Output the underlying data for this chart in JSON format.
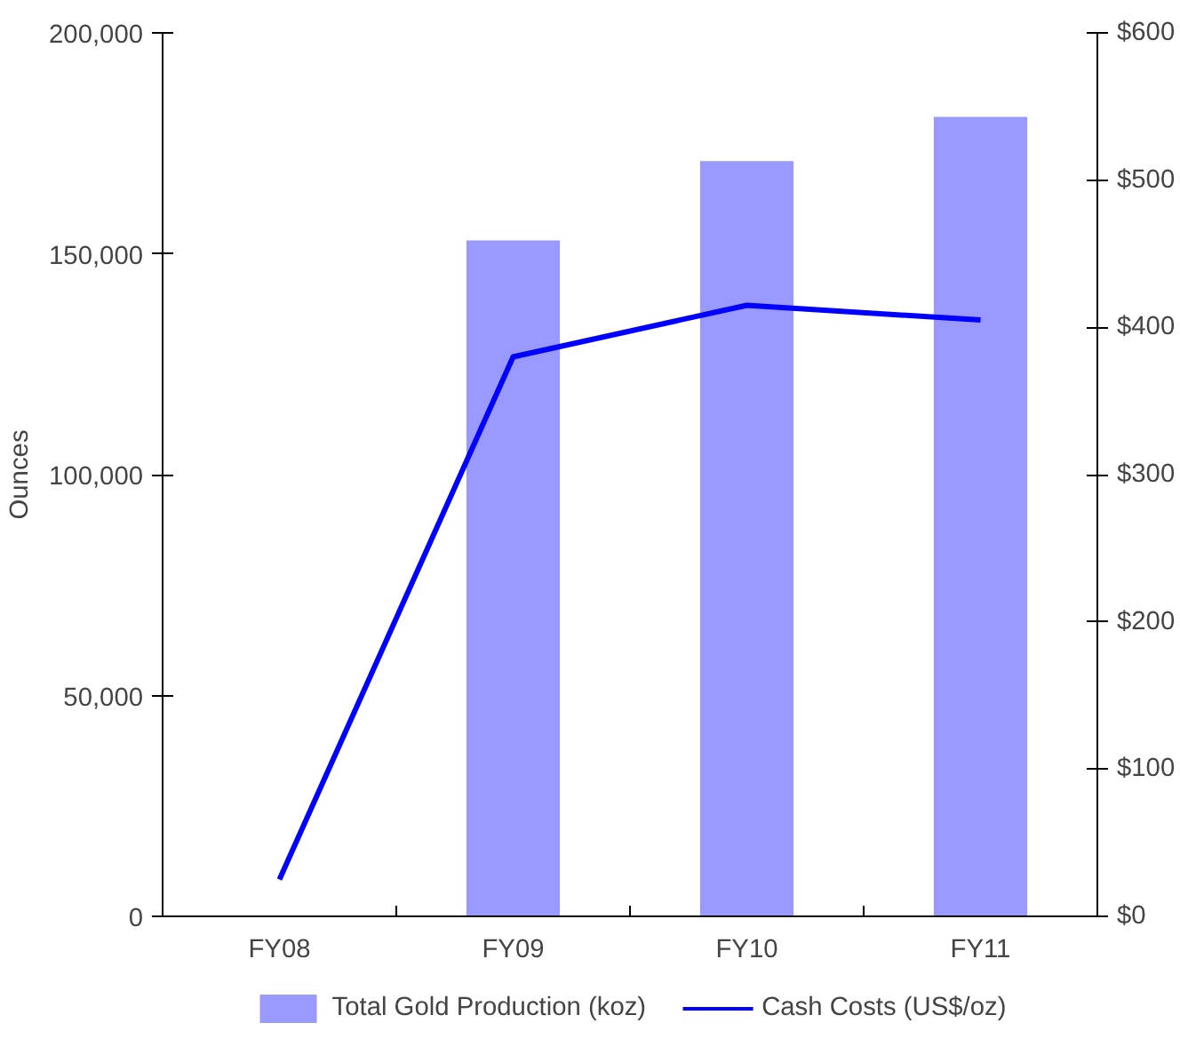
{
  "chart_data": {
    "type": "bar",
    "ylabel": "Ounces",
    "categories": [
      "FY08",
      "FY09",
      "FY10",
      "FY11"
    ],
    "series": [
      {
        "name": "Total Gold Production (koz)",
        "color": "#9999ff",
        "values": [
          null,
          153000,
          171000,
          181000
        ]
      },
      {
        "name": "Cash Costs (US$/oz)",
        "type": "line",
        "axis": "y2",
        "color": "#0000ff",
        "values": [
          25,
          380,
          415,
          405
        ]
      }
    ],
    "ylim": [
      0,
      200000
    ],
    "yticks": [
      {
        "value": 0,
        "label": "0"
      },
      {
        "value": 50000,
        "label": "50,000"
      },
      {
        "value": 100000,
        "label": "100,000"
      },
      {
        "value": 150000,
        "label": "150,000"
      },
      {
        "value": 200000,
        "label": "200,000"
      }
    ],
    "y2lim": [
      0,
      600
    ],
    "y2ticks": [
      {
        "value": 0,
        "label": "$0"
      },
      {
        "value": 100,
        "label": "$100"
      },
      {
        "value": 200,
        "label": "$200"
      },
      {
        "value": 300,
        "label": "$300"
      },
      {
        "value": 400,
        "label": "$400"
      },
      {
        "value": 500,
        "label": "$500"
      },
      {
        "value": 600,
        "label": "$600"
      }
    ],
    "legend": "bottom",
    "grid": false,
    "marker": "none",
    "line_style": "solid"
  }
}
